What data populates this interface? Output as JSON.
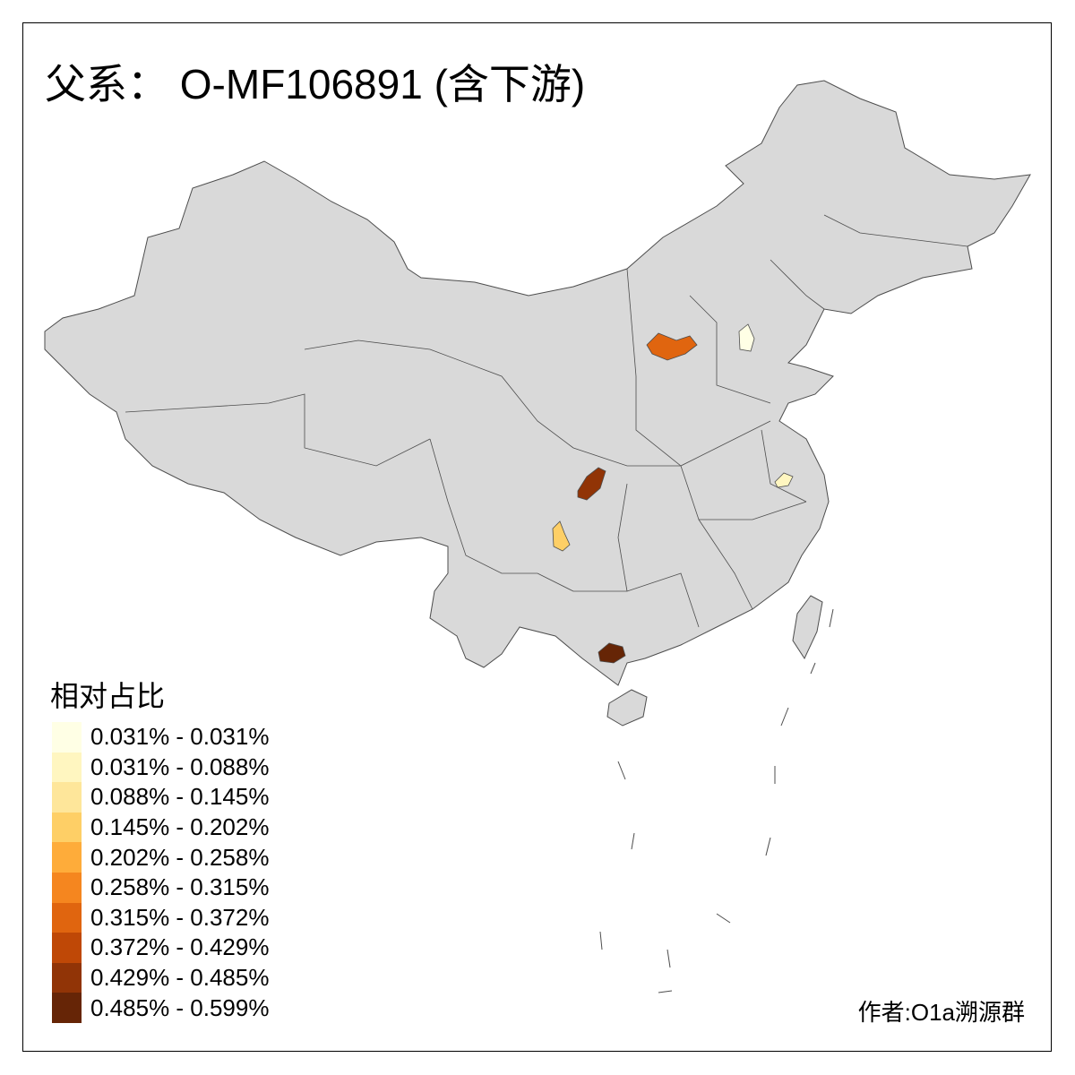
{
  "title": "父系： O-MF106891 (含下游)",
  "legend": {
    "title": "相对占比",
    "items": [
      {
        "label": "0.031% - 0.031%",
        "color": "#FFFFE5"
      },
      {
        "label": "0.031% - 0.088%",
        "color": "#FFF6C0"
      },
      {
        "label": "0.088% - 0.145%",
        "color": "#FEE69A"
      },
      {
        "label": "0.145% - 0.202%",
        "color": "#FECF66"
      },
      {
        "label": "0.202% - 0.258%",
        "color": "#FEAC3A"
      },
      {
        "label": "0.258% - 0.315%",
        "color": "#F5861F"
      },
      {
        "label": "0.315% - 0.372%",
        "color": "#E0650F"
      },
      {
        "label": "0.372% - 0.429%",
        "color": "#BF4806"
      },
      {
        "label": "0.429% - 0.485%",
        "color": "#913406"
      },
      {
        "label": "0.485% - 0.599%",
        "color": "#662506"
      }
    ]
  },
  "map": {
    "base_color": "#D9D9D9",
    "border_color": "#4D4D4D",
    "highlighted_regions": [
      {
        "legend_class": 6
      },
      {
        "legend_class": 0
      },
      {
        "legend_class": 8
      },
      {
        "legend_class": 3
      },
      {
        "legend_class": 9
      },
      {
        "legend_class": 1
      }
    ]
  },
  "author": "作者:O1a溯源群"
}
